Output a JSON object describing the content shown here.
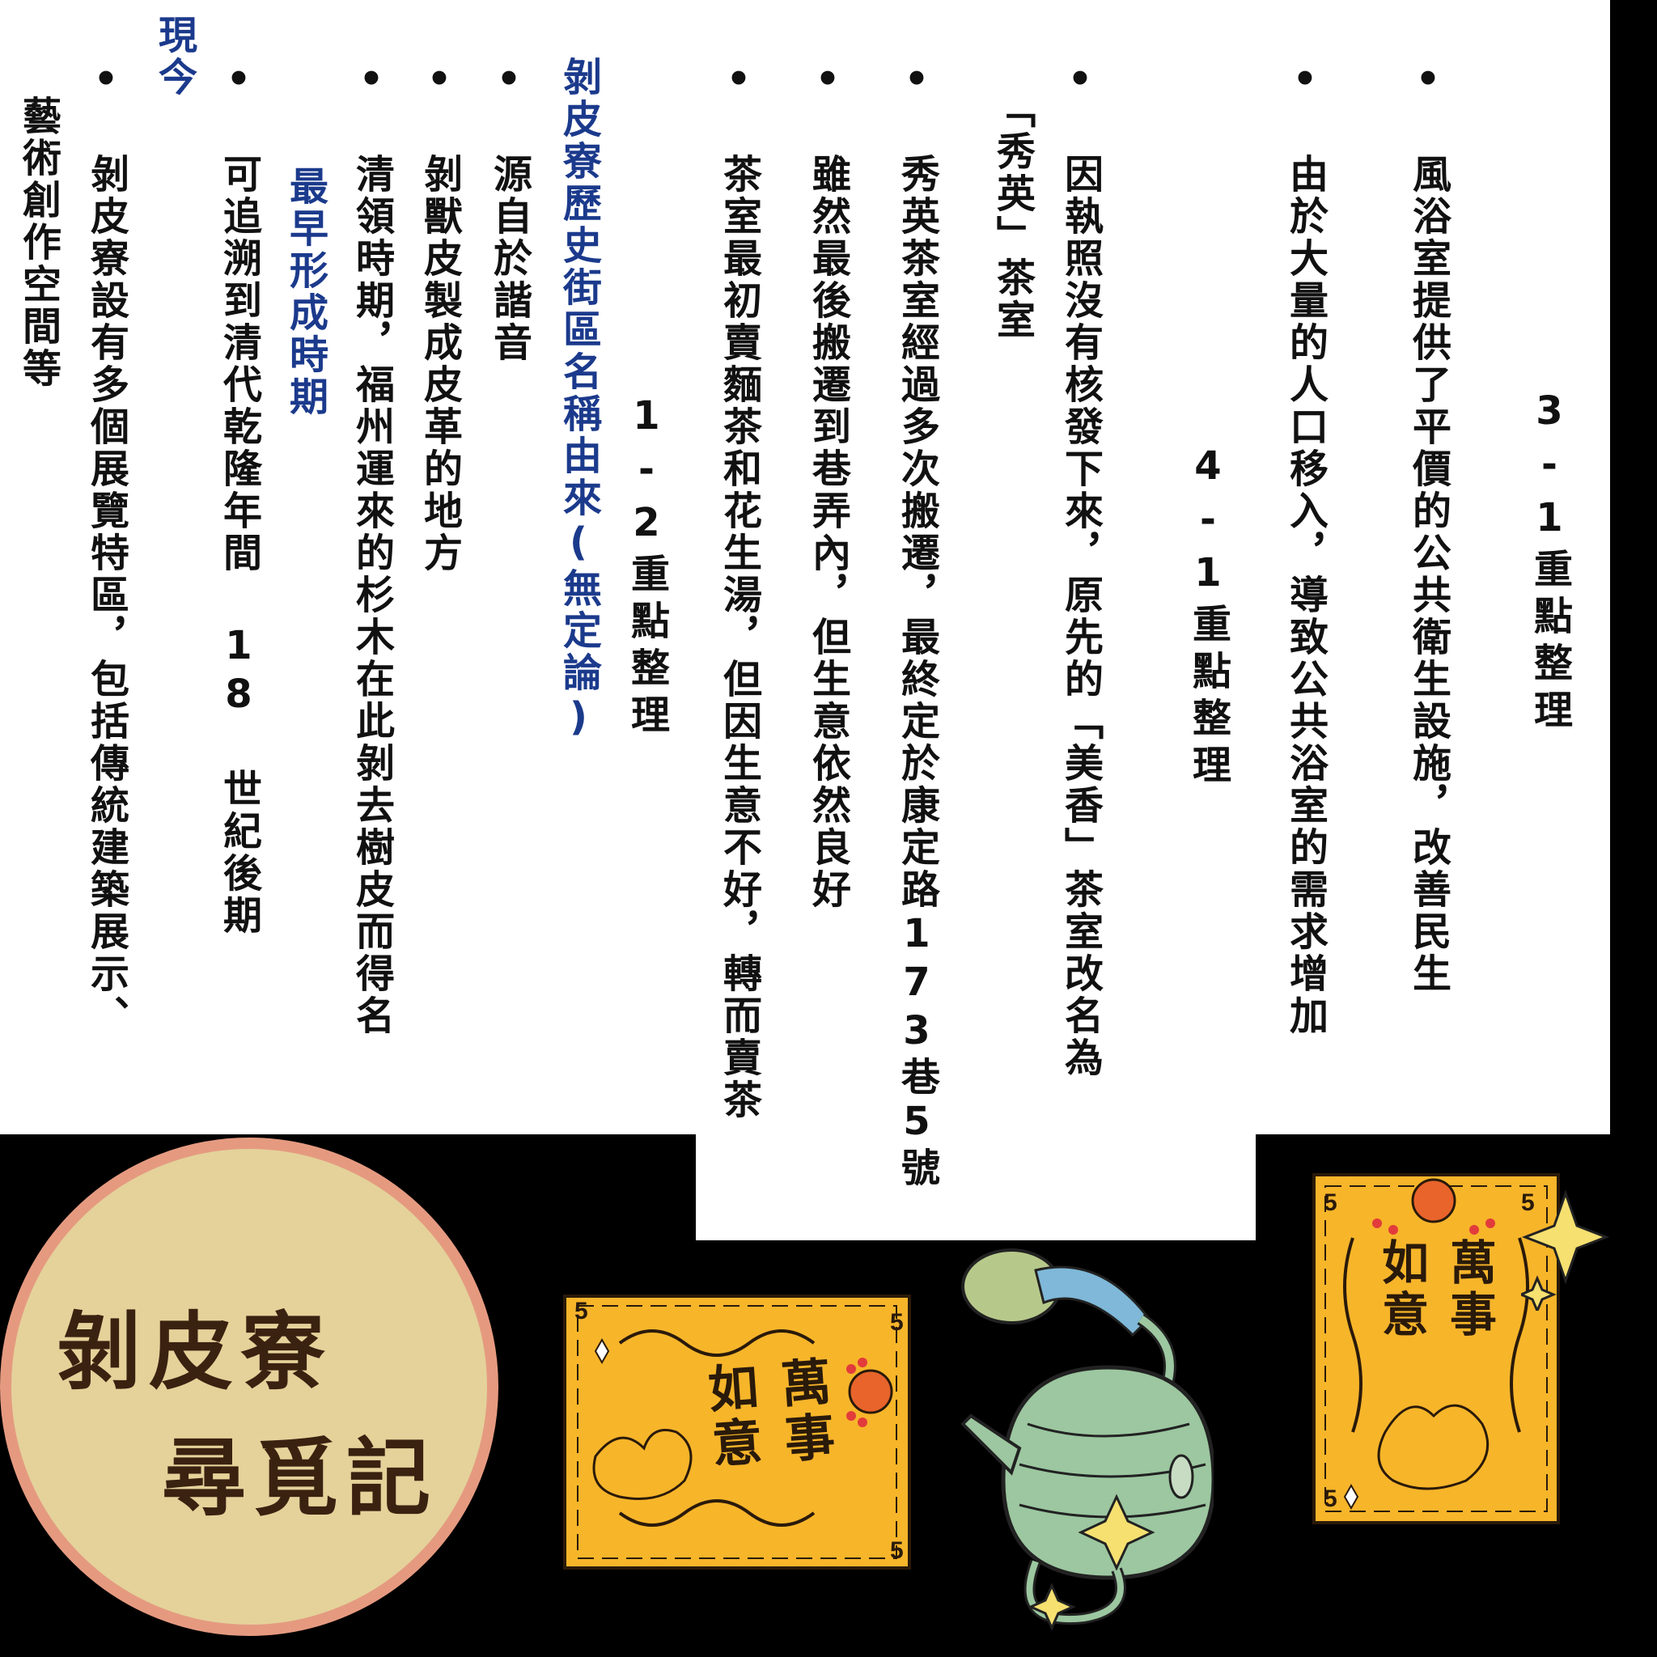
{
  "colors": {
    "blue_text": "#1b3a8c",
    "circle_fill": "#e4d29a",
    "circle_border": "#e59a80",
    "card_fill": "#f7b52a"
  },
  "section31": {
    "heading": "3-1重點整理",
    "bullets": [
      "• 風浴室提供了平價的公共衛生設施，改善民生",
      "• 由於大量的人口移入，導致公共浴室的需求增加"
    ]
  },
  "section41": {
    "heading": "4-1重點整理",
    "bullets": [
      [
        "• 因執照沒有核發下來，原先的「美香」茶室改名為",
        "「秀英」茶室"
      ],
      [
        "• 秀英茶室經過多次搬遷，最終定於康定路173巷5號"
      ],
      [
        "• 雖然最後搬遷到巷弄內，但生意依然良好"
      ],
      [
        "• 茶室最初賣麵茶和花生湯，但因生意不好，轉而賣茶"
      ]
    ]
  },
  "section12": {
    "heading": "1-2重點整理",
    "subheading": "剝皮寮歷史街區名稱由來(無定論)",
    "items": [
      "• 源自於諧音",
      "• 剝獸皮製成皮革的地方",
      "• 清領時期，福州運來的杉木在此剝去樹皮而得名"
    ],
    "earliest_label": "最早形成時期",
    "earliest_item": "• 可追溯到清代乾隆年間 18 世紀後期",
    "now_label": "現今",
    "now_item": [
      "• 剝皮寮設有多個展覽特區，包括傳統建築展示、",
      "藝術創作空間等"
    ]
  },
  "title": {
    "line1": "剝皮寮",
    "line2": "尋覓記"
  },
  "cards": {
    "left": {
      "corner": "5",
      "text": "萬事如意"
    },
    "right": {
      "corner": "5",
      "text": "萬事如意"
    }
  }
}
